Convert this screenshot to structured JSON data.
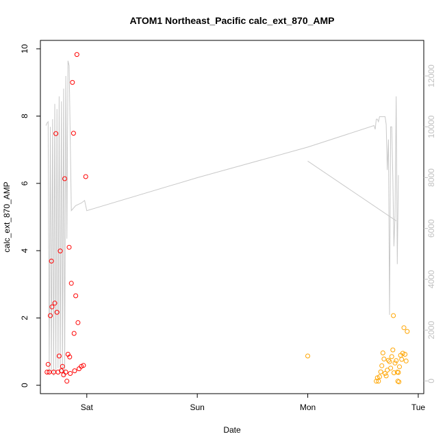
{
  "chart_data": {
    "type": "scatter",
    "title": "ATOM1 Northeast_Pacific calc_ext_870_AMP",
    "xlabel": "Date",
    "ylabel": "calc_ext_870_AMP",
    "x_ticks": [
      {
        "label": "Sat",
        "x": 0.0
      },
      {
        "label": "Sun",
        "x": 1.0
      },
      {
        "label": "Mon",
        "x": 2.0
      },
      {
        "label": "Tue",
        "x": 3.0
      }
    ],
    "xlim": [
      -0.42,
      3.05
    ],
    "ylim": [
      -0.25,
      10.25
    ],
    "y_ticks": [
      0,
      2,
      4,
      6,
      8,
      10
    ],
    "y2_ticks": [
      0,
      2000,
      4000,
      6000,
      8000,
      10000,
      12000
    ],
    "y2lim": [
      -500,
      13400
    ],
    "grid": false,
    "colors": {
      "series_red": "#ff0000",
      "series_orange": "#ffa500",
      "line": "#c8c8c8",
      "right_axis": "#c0c0c0"
    },
    "series": [
      {
        "color": "red",
        "points": [
          [
            -0.36,
            0.39
          ],
          [
            -0.35,
            0.62
          ],
          [
            -0.34,
            0.39
          ],
          [
            -0.33,
            2.07
          ],
          [
            -0.32,
            3.69
          ],
          [
            -0.315,
            2.33
          ],
          [
            -0.3,
            0.39
          ],
          [
            -0.29,
            2.44
          ],
          [
            -0.28,
            7.48
          ],
          [
            -0.27,
            2.17
          ],
          [
            -0.26,
            0.39
          ],
          [
            -0.25,
            0.87
          ],
          [
            -0.24,
            3.99
          ],
          [
            -0.23,
            0.43
          ],
          [
            -0.22,
            0.56
          ],
          [
            -0.21,
            0.31
          ],
          [
            -0.2,
            6.14
          ],
          [
            -0.19,
            0.39
          ],
          [
            -0.18,
            0.12
          ],
          [
            -0.17,
            0.92
          ],
          [
            -0.16,
            4.1
          ],
          [
            -0.155,
            0.84
          ],
          [
            -0.15,
            0.35
          ],
          [
            -0.14,
            3.03
          ],
          [
            -0.13,
            9.0
          ],
          [
            -0.12,
            7.49
          ],
          [
            -0.115,
            1.54
          ],
          [
            -0.11,
            0.43
          ],
          [
            -0.1,
            2.66
          ],
          [
            -0.09,
            9.83
          ],
          [
            -0.08,
            1.86
          ],
          [
            -0.07,
            0.49
          ],
          [
            -0.05,
            0.56
          ],
          [
            -0.03,
            0.59
          ],
          [
            -0.01,
            6.2
          ]
        ]
      },
      {
        "color": "orange",
        "points": [
          [
            2.0,
            0.87
          ],
          [
            2.62,
            0.12
          ],
          [
            2.63,
            0.22
          ],
          [
            2.64,
            0.12
          ],
          [
            2.65,
            0.25
          ],
          [
            2.66,
            0.4
          ],
          [
            2.67,
            0.58
          ],
          [
            2.68,
            0.96
          ],
          [
            2.69,
            0.78
          ],
          [
            2.7,
            0.35
          ],
          [
            2.71,
            0.28
          ],
          [
            2.72,
            0.45
          ],
          [
            2.73,
            0.74
          ],
          [
            2.74,
            0.7
          ],
          [
            2.75,
            0.51
          ],
          [
            2.76,
            0.85
          ],
          [
            2.77,
            1.05
          ],
          [
            2.775,
            2.07
          ],
          [
            2.78,
            0.37
          ],
          [
            2.79,
            0.66
          ],
          [
            2.8,
            0.73
          ],
          [
            2.81,
            0.39
          ],
          [
            2.815,
            0.12
          ],
          [
            2.82,
            0.38
          ],
          [
            2.825,
            0.1
          ],
          [
            2.83,
            0.55
          ],
          [
            2.84,
            0.89
          ],
          [
            2.85,
            0.77
          ],
          [
            2.86,
            0.95
          ],
          [
            2.87,
            1.71
          ],
          [
            2.88,
            0.92
          ],
          [
            2.89,
            0.72
          ],
          [
            2.9,
            1.6
          ]
        ]
      }
    ],
    "line_series": {
      "axis": "right",
      "color": "grey",
      "segments": [
        [
          [
            -0.37,
            10050
          ],
          [
            -0.36,
            10150
          ],
          [
            -0.35,
            10200
          ],
          [
            -0.34,
            300
          ],
          [
            -0.33,
            10000
          ],
          [
            -0.32,
            400
          ],
          [
            -0.31,
            10300
          ],
          [
            -0.3,
            200
          ],
          [
            -0.29,
            10900
          ],
          [
            -0.28,
            300
          ],
          [
            -0.27,
            10700
          ],
          [
            -0.26,
            500
          ],
          [
            -0.25,
            11200
          ],
          [
            -0.24,
            400
          ],
          [
            -0.23,
            11000
          ],
          [
            -0.22,
            300
          ],
          [
            -0.21,
            11500
          ],
          [
            -0.2,
            200
          ],
          [
            -0.19,
            12000
          ],
          [
            -0.18,
            5600
          ],
          [
            -0.17,
            12600
          ],
          [
            -0.16,
            12400
          ],
          [
            -0.14,
            6700
          ],
          [
            -0.1,
            6900
          ],
          [
            -0.05,
            7000
          ],
          [
            -0.02,
            7100
          ],
          [
            0.0,
            6700
          ],
          [
            1.0,
            8000
          ],
          [
            2.0,
            9200
          ],
          [
            2.6,
            10050
          ],
          [
            2.61,
            9900
          ],
          [
            2.62,
            10300
          ],
          [
            2.63,
            10300
          ],
          [
            2.64,
            10200
          ],
          [
            2.65,
            10400
          ],
          [
            2.7,
            10400
          ],
          [
            2.71,
            10100
          ],
          [
            2.72,
            8300
          ],
          [
            2.73,
            9500
          ],
          [
            2.74,
            2600
          ],
          [
            2.75,
            10000
          ],
          [
            2.76,
            10000
          ],
          [
            2.77,
            8000
          ],
          [
            2.78,
            5300
          ],
          [
            2.79,
            6500
          ],
          [
            2.8,
            11200
          ],
          [
            2.81,
            4600
          ],
          [
            2.82,
            8100
          ]
        ],
        [
          [
            2.0,
            8650
          ],
          [
            2.8,
            6300
          ]
        ]
      ]
    }
  }
}
